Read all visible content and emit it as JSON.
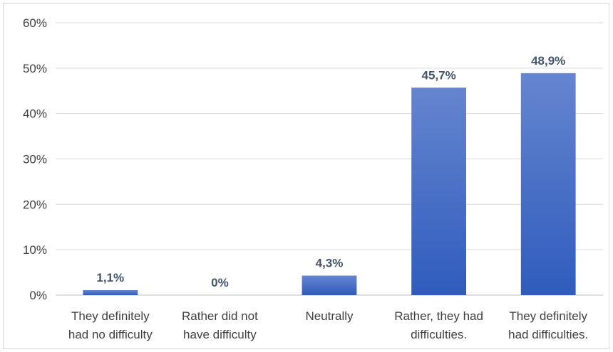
{
  "chart_data": {
    "type": "bar",
    "title": "",
    "xlabel": "",
    "ylabel": "",
    "categories": [
      [
        "They definitely",
        "had no difficulty"
      ],
      [
        "Rather did not",
        "have difficulty"
      ],
      [
        "Neutrally"
      ],
      [
        "Rather, they had",
        "difficulties."
      ],
      [
        "They definitely",
        "had difficulties."
      ]
    ],
    "values": [
      1.1,
      0,
      4.3,
      45.7,
      48.9
    ],
    "data_labels": [
      "1,1%",
      "0%",
      "4,3%",
      "45,7%",
      "48,9%"
    ],
    "ylim": [
      0,
      60
    ],
    "yticks": [
      0,
      10,
      20,
      30,
      40,
      50,
      60
    ],
    "ytick_labels": [
      "0%",
      "10%",
      "20%",
      "30%",
      "40%",
      "50%",
      "60%"
    ],
    "grid": true,
    "legend": "none",
    "colors": {
      "bar_top": "#6585cf",
      "bar_bottom": "#2f5cbd",
      "grid": "#d9d9d9",
      "data_label": "#44546a"
    }
  }
}
